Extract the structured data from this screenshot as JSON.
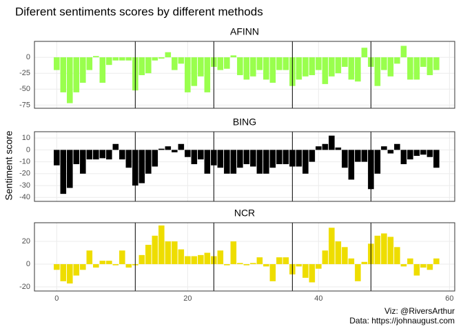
{
  "title": "Diferent sentiments scores by different methods",
  "y_label": "Sentiment score",
  "caption": [
    "Viz: @RiversArthur",
    "Data: https://johnaugust.com"
  ],
  "chart_data": [
    {
      "type": "bar",
      "title": "AFINN",
      "color": "#99FF4D",
      "x": [
        0,
        1,
        2,
        3,
        4,
        5,
        6,
        7,
        8,
        9,
        10,
        11,
        12,
        13,
        14,
        15,
        16,
        17,
        18,
        19,
        20,
        21,
        22,
        23,
        24,
        25,
        26,
        27,
        28,
        29,
        30,
        31,
        32,
        33,
        34,
        35,
        36,
        37,
        38,
        39,
        40,
        41,
        42,
        43,
        44,
        45,
        46,
        47,
        48,
        49,
        50,
        51,
        52,
        53,
        54,
        55,
        56,
        57,
        58
      ],
      "values": [
        -20,
        -55,
        -72,
        -55,
        -40,
        -20,
        2,
        -40,
        -12,
        -5,
        -5,
        -5,
        -52,
        -28,
        -25,
        -5,
        -2,
        8,
        -20,
        -10,
        -55,
        -45,
        -30,
        -55,
        -15,
        -20,
        -18,
        3,
        -28,
        -35,
        -30,
        -20,
        -35,
        -40,
        -20,
        -20,
        -45,
        -35,
        -30,
        -28,
        -20,
        -42,
        -30,
        -25,
        -15,
        -35,
        -38,
        15,
        -15,
        -45,
        -20,
        -30,
        -10,
        18,
        -35,
        -35,
        -15,
        -28,
        -20
      ],
      "xlim": [
        -3.4,
        60.8
      ],
      "xticks": [
        0,
        20,
        40,
        60
      ],
      "ylim": [
        -80,
        25
      ],
      "yticks": [
        -75,
        -50,
        -25,
        0
      ],
      "vlines": [
        12,
        24,
        36,
        48
      ],
      "grid": true
    },
    {
      "type": "bar",
      "title": "BING",
      "color": "#000000",
      "x": [
        0,
        1,
        2,
        3,
        4,
        5,
        6,
        7,
        8,
        9,
        10,
        11,
        12,
        13,
        14,
        15,
        16,
        17,
        18,
        19,
        20,
        21,
        22,
        23,
        24,
        25,
        26,
        27,
        28,
        29,
        30,
        31,
        32,
        33,
        34,
        35,
        36,
        37,
        38,
        39,
        40,
        41,
        42,
        43,
        44,
        45,
        46,
        47,
        48,
        49,
        50,
        51,
        52,
        53,
        54,
        55,
        56,
        57,
        58
      ],
      "values": [
        -13,
        -37,
        -32,
        -12,
        -20,
        -8,
        -8,
        -7,
        -8,
        5,
        -8,
        -15,
        -30,
        -28,
        -20,
        -14,
        1,
        3,
        -2,
        5,
        -6,
        -12,
        -8,
        -20,
        -13,
        -15,
        -20,
        -20,
        -15,
        -12,
        -14,
        -20,
        -20,
        -15,
        -12,
        -12,
        -14,
        -14,
        -20,
        -10,
        3,
        5,
        12,
        2,
        -15,
        -25,
        -10,
        -10,
        -33,
        -20,
        3,
        -3,
        5,
        -12,
        -8,
        -5,
        -4,
        -6,
        -15
      ],
      "xlim": [
        -3.4,
        60.8
      ],
      "xticks": [
        0,
        20,
        40,
        60
      ],
      "ylim": [
        -43.3,
        15.3
      ],
      "yticks": [
        -40,
        -30,
        -20,
        -10,
        0,
        10
      ],
      "vlines": [
        12,
        24,
        36,
        48
      ],
      "grid": true
    },
    {
      "type": "bar",
      "title": "NCR",
      "color": "#EEDD00",
      "x": [
        0,
        1,
        2,
        3,
        4,
        5,
        6,
        7,
        8,
        9,
        10,
        11,
        12,
        13,
        14,
        15,
        16,
        17,
        18,
        19,
        20,
        21,
        22,
        23,
        24,
        25,
        26,
        27,
        28,
        29,
        30,
        31,
        32,
        33,
        34,
        35,
        36,
        37,
        38,
        39,
        40,
        41,
        42,
        43,
        44,
        45,
        46,
        47,
        48,
        49,
        50,
        51,
        52,
        53,
        54,
        55,
        56,
        57,
        58
      ],
      "values": [
        -5,
        -15,
        -17,
        -10,
        -5,
        12,
        -3,
        3,
        3,
        -1,
        12,
        -3,
        -1,
        8,
        17,
        25,
        34,
        20,
        20,
        13,
        7,
        7,
        8,
        10,
        7,
        12,
        -1,
        20,
        1,
        -1,
        1,
        6,
        -2,
        -15,
        6,
        6,
        -9,
        -2,
        -12,
        -16,
        -4,
        12,
        32,
        20,
        15,
        5,
        -15,
        2,
        18,
        25,
        27,
        24,
        15,
        -2,
        5,
        -10,
        -3,
        -5,
        5
      ],
      "xlim": [
        -3.4,
        60.8
      ],
      "xticks": [
        0,
        20,
        40,
        60
      ],
      "ylim": [
        -23.6,
        36.4
      ],
      "yticks": [
        -20,
        0,
        20
      ],
      "vlines": [
        12,
        24,
        36,
        48
      ],
      "grid": true
    }
  ]
}
